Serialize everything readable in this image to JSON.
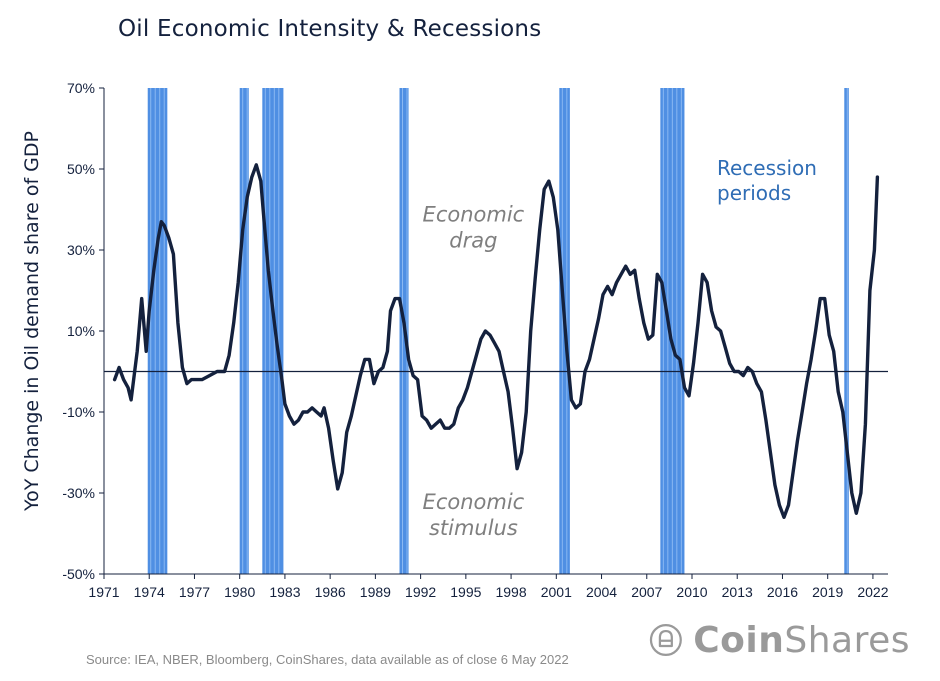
{
  "title": "Oil Economic Intensity & Recessions",
  "source": "Source: IEA, NBER, Bloomberg, CoinShares, data available as of close 6 May 2022",
  "logo": {
    "prefix": "Coin",
    "suffix": "Shares",
    "icon": "coinshares-logo-icon"
  },
  "colors": {
    "line": "#14213d",
    "recession": "#4f8fe3",
    "recession_label": "#2f6db5",
    "annotation": "#7f7f7f"
  },
  "chart_data": {
    "type": "line",
    "title": "Oil Economic Intensity & Recessions",
    "xlabel": "",
    "ylabel": "YoY Change in Oil demand share of GDP",
    "xlim": [
      1971,
      2023
    ],
    "ylim": [
      -50,
      70
    ],
    "x_ticks": [
      1971,
      1974,
      1977,
      1980,
      1983,
      1986,
      1989,
      1992,
      1995,
      1998,
      2001,
      2004,
      2007,
      2010,
      2013,
      2016,
      2019,
      2022
    ],
    "x_tick_labels": [
      "1971",
      "1974",
      "1977",
      "1980",
      "1983",
      "1986",
      "1989",
      "1992",
      "1995",
      "1998",
      "2001",
      "2004",
      "2007",
      "2010",
      "2013",
      "2016",
      "2019",
      "2022"
    ],
    "y_ticks": [
      -50,
      -30,
      -10,
      10,
      30,
      50,
      70
    ],
    "y_tick_labels": [
      "-50%",
      "-30%",
      "-10%",
      "10%",
      "30%",
      "50%",
      "70%"
    ],
    "zero_line": 0,
    "grid": false,
    "annotations": [
      {
        "lines": [
          "Economic",
          "drag"
        ],
        "x": 1995.5,
        "y": 37
      },
      {
        "lines": [
          "Economic",
          "stimulus"
        ],
        "x": 1995.5,
        "y": -34
      }
    ],
    "legend": {
      "lines": [
        "Recession",
        "periods"
      ],
      "placement": "top-right"
    },
    "recessions": [
      {
        "start": 1973.9,
        "end": 1975.2
      },
      {
        "start": 1980.0,
        "end": 1980.6
      },
      {
        "start": 1981.5,
        "end": 1982.9
      },
      {
        "start": 1990.6,
        "end": 1991.2
      },
      {
        "start": 2001.2,
        "end": 2001.9
      },
      {
        "start": 2007.9,
        "end": 2009.5
      },
      {
        "start": 2020.1,
        "end": 2020.4
      }
    ],
    "series": [
      {
        "x": [
          1971.7,
          1972.0,
          1972.3,
          1972.6,
          1972.8,
          1973.2,
          1973.5,
          1973.8,
          1974.0,
          1974.3,
          1974.6,
          1974.8,
          1975.0,
          1975.3,
          1975.6,
          1975.9,
          1976.2,
          1976.5,
          1976.8,
          1977.0,
          1977.5,
          1978.0,
          1978.5,
          1979.0,
          1979.3,
          1979.6,
          1979.9,
          1980.2,
          1980.5,
          1980.8,
          1981.1,
          1981.4,
          1981.6,
          1981.9,
          1982.2,
          1982.5,
          1982.8,
          1983.0,
          1983.3,
          1983.6,
          1983.9,
          1984.2,
          1984.5,
          1984.8,
          1985.1,
          1985.4,
          1985.6,
          1985.9,
          1986.2,
          1986.5,
          1986.8,
          1987.1,
          1987.4,
          1987.7,
          1988.0,
          1988.3,
          1988.6,
          1988.9,
          1989.2,
          1989.5,
          1989.8,
          1990.0,
          1990.3,
          1990.6,
          1990.9,
          1991.2,
          1991.5,
          1991.8,
          1992.1,
          1992.4,
          1992.7,
          1993.0,
          1993.3,
          1993.6,
          1993.9,
          1994.2,
          1994.5,
          1994.8,
          1995.1,
          1995.4,
          1995.7,
          1996.0,
          1996.3,
          1996.6,
          1996.9,
          1997.2,
          1997.5,
          1997.8,
          1998.1,
          1998.4,
          1998.7,
          1999.0,
          1999.3,
          1999.6,
          1999.9,
          2000.2,
          2000.5,
          2000.8,
          2001.1,
          2001.4,
          2001.7,
          2002.0,
          2002.3,
          2002.6,
          2002.9,
          2003.2,
          2003.5,
          2003.8,
          2004.1,
          2004.4,
          2004.7,
          2005.0,
          2005.3,
          2005.6,
          2005.9,
          2006.2,
          2006.5,
          2006.8,
          2007.1,
          2007.4,
          2007.7,
          2008.0,
          2008.3,
          2008.6,
          2008.9,
          2009.2,
          2009.5,
          2009.8,
          2010.1,
          2010.4,
          2010.7,
          2011.0,
          2011.3,
          2011.6,
          2011.9,
          2012.2,
          2012.5,
          2012.8,
          2013.1,
          2013.4,
          2013.7,
          2014.0,
          2014.3,
          2014.6,
          2014.9,
          2015.2,
          2015.5,
          2015.8,
          2016.1,
          2016.4,
          2016.7,
          2017.0,
          2017.3,
          2017.6,
          2017.9,
          2018.2,
          2018.5,
          2018.8,
          2019.1,
          2019.4,
          2019.7,
          2020.0,
          2020.3,
          2020.6,
          2020.9,
          2021.2,
          2021.5,
          2021.8,
          2022.1,
          2022.3
        ],
        "values": [
          -2,
          1,
          -2,
          -4,
          -7,
          5,
          18,
          5,
          15,
          25,
          33,
          37,
          36,
          33,
          29,
          12,
          1,
          -3,
          -2,
          -2,
          -2,
          -1,
          0,
          0,
          4,
          12,
          22,
          35,
          43,
          48,
          51,
          47,
          38,
          25,
          15,
          6,
          -2,
          -8,
          -11,
          -13,
          -12,
          -10,
          -10,
          -9,
          -10,
          -11,
          -9,
          -14,
          -22,
          -29,
          -25,
          -15,
          -11,
          -6,
          -1,
          3,
          3,
          -3,
          0,
          1,
          5,
          15,
          18,
          18,
          12,
          3,
          -1,
          -2,
          -11,
          -12,
          -14,
          -13,
          -12,
          -14,
          -14,
          -13,
          -9,
          -7,
          -4,
          0,
          4,
          8,
          10,
          9,
          7,
          5,
          0,
          -5,
          -14,
          -24,
          -20,
          -10,
          10,
          23,
          35,
          45,
          47,
          43,
          35,
          20,
          5,
          -7,
          -9,
          -8,
          0,
          3,
          8,
          13,
          19,
          21,
          19,
          22,
          24,
          26,
          24,
          25,
          18,
          12,
          8,
          9,
          24,
          22,
          15,
          8,
          4,
          3,
          -4,
          -6,
          2,
          12,
          24,
          22,
          15,
          11,
          10,
          6,
          2,
          0,
          0,
          -1,
          1,
          0,
          -3,
          -5,
          -12,
          -20,
          -28,
          -33,
          -36,
          -33,
          -25,
          -17,
          -10,
          -3,
          3,
          10,
          18,
          18,
          9,
          5,
          -5,
          -10,
          -20,
          -30,
          -35,
          -30,
          -13,
          20,
          30,
          48
        ]
      }
    ]
  }
}
